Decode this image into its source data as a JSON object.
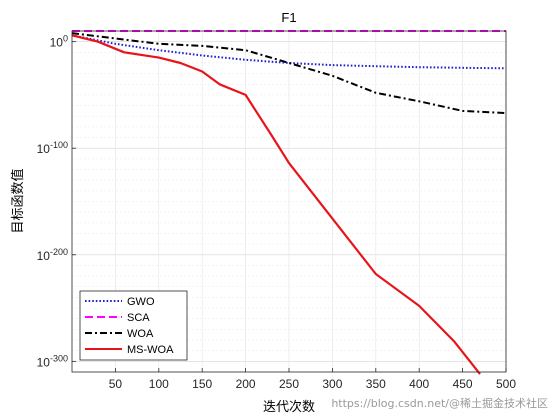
{
  "chart_data": {
    "type": "line",
    "title": "F1",
    "xlabel": "迭代次数",
    "ylabel": "目标函数值",
    "xlim": [
      0,
      500
    ],
    "ylim_exponent": [
      -310,
      10
    ],
    "y_scale": "log",
    "x_ticks": [
      50,
      100,
      150,
      200,
      250,
      300,
      350,
      400,
      450,
      500
    ],
    "y_ticks": [
      {
        "exponent": 0,
        "label": "10",
        "sup": "0"
      },
      {
        "exponent": -100,
        "label": "10",
        "sup": "-100"
      },
      {
        "exponent": -200,
        "label": "10",
        "sup": "-200"
      },
      {
        "exponent": -300,
        "label": "10",
        "sup": "-300"
      }
    ],
    "grid": true,
    "legend_position": "bottom-left",
    "series": [
      {
        "name": "GWO",
        "color": "#1f1fd0",
        "dash": "dotted",
        "x": [
          0,
          50,
          100,
          150,
          200,
          250,
          300,
          350,
          400,
          450,
          500
        ],
        "y_exponent": [
          6,
          -2,
          -8,
          -13,
          -17,
          -20,
          -22,
          -23,
          -24,
          -24.5,
          -25
        ]
      },
      {
        "name": "SCA",
        "color": "#ff00ff",
        "dash": "dashed",
        "x": [
          0,
          100,
          200,
          300,
          400,
          500
        ],
        "y_exponent": [
          10,
          10,
          10,
          10,
          10,
          10
        ]
      },
      {
        "name": "WOA",
        "color": "#000000",
        "dash": "dashdot",
        "x": [
          0,
          50,
          100,
          150,
          200,
          250,
          275,
          300,
          350,
          400,
          450,
          500
        ],
        "y_exponent": [
          8,
          3,
          -2,
          -4,
          -8,
          -20,
          -26,
          -32,
          -48,
          -56,
          -65,
          -67
        ]
      },
      {
        "name": "MS-WOA",
        "color": "#e8141b",
        "dash": "solid",
        "x": [
          0,
          30,
          60,
          100,
          125,
          150,
          170,
          200,
          230,
          250,
          300,
          350,
          400,
          440,
          470
        ],
        "y_exponent": [
          6,
          0,
          -10,
          -15,
          -20,
          -28,
          -40,
          -50,
          -88,
          -114,
          -166,
          -218,
          -248,
          -281,
          -312
        ]
      }
    ]
  },
  "watermark": "https://blog.csdn.net/@稀土掘金技术社区"
}
